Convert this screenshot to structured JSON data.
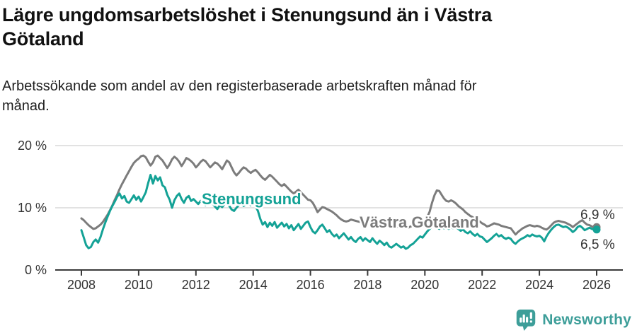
{
  "header": {
    "title": "Lägre ungdomsarbetslöshet i Stenungsund än i Västra\nGötaland",
    "subtitle": "Arbetssökande som andel av den registerbaserade arbetskraften månad för\nmånad."
  },
  "chart_data": {
    "type": "line",
    "title": "Lägre ungdomsarbetslöshet i Stenungsund än i Västra Götaland",
    "subtitle": "Arbetssökande som andel av den registerbaserade arbetskraften månad för månad.",
    "unit": "%",
    "x_start_year": 2008,
    "points_per_year": 12,
    "x_ticks": [
      "2008",
      "2010",
      "2012",
      "2014",
      "2016",
      "2018",
      "2020",
      "2022",
      "2024",
      "2026"
    ],
    "y_ticks": [
      {
        "value": 0,
        "label": "0 %"
      },
      {
        "value": 10,
        "label": "10 %"
      },
      {
        "value": 20,
        "label": "20 %"
      }
    ],
    "ylim": [
      0,
      21
    ],
    "grid": "horizontal-only",
    "legend_position": "inline-labels",
    "axis_color": "#3a3a3a",
    "gridline_color": "#d9d9d9",
    "tick_label_color": "#333333",
    "end_label_color": "#333333",
    "series": [
      {
        "name": "Stenungsund",
        "color": "#14a296",
        "end_label": "6,5 %",
        "end_value": 6.5,
        "values": [
          6.4,
          5.2,
          4.0,
          3.5,
          3.7,
          4.5,
          4.9,
          4.4,
          5.3,
          6.5,
          7.6,
          8.6,
          9.5,
          10.3,
          11.0,
          11.8,
          12.3,
          11.5,
          11.9,
          11.0,
          10.8,
          11.4,
          12.0,
          11.3,
          11.8,
          11.0,
          11.7,
          12.5,
          14.0,
          15.3,
          13.9,
          15.1,
          14.4,
          14.9,
          13.6,
          13.3,
          12.1,
          11.3,
          10.0,
          11.2,
          11.9,
          12.3,
          11.4,
          10.8,
          11.6,
          11.9,
          11.1,
          11.4,
          11.0,
          10.6,
          11.1,
          10.8,
          10.4,
          10.9,
          11.3,
          10.7,
          10.2,
          9.8,
          10.4,
          10.1,
          10.6,
          10.9,
          10.3,
          9.7,
          9.5,
          10.0,
          10.4,
          10.8,
          10.3,
          10.6,
          10.9,
          10.4,
          10.8,
          10.2,
          9.5,
          8.2,
          7.3,
          7.7,
          6.9,
          7.6,
          7.1,
          7.7,
          6.8,
          7.2,
          7.6,
          7.0,
          7.4,
          6.7,
          7.2,
          6.4,
          6.9,
          7.4,
          6.6,
          7.1,
          7.6,
          7.8,
          6.9,
          6.2,
          5.9,
          6.4,
          7.0,
          7.3,
          6.7,
          6.1,
          6.4,
          5.8,
          5.4,
          5.7,
          5.1,
          5.5,
          5.9,
          5.4,
          4.9,
          5.3,
          4.8,
          4.5,
          5.0,
          5.3,
          4.7,
          5.1,
          4.8,
          4.5,
          5.1,
          4.6,
          4.2,
          4.7,
          4.4,
          4.0,
          4.4,
          3.8,
          3.6,
          3.9,
          4.2,
          3.9,
          3.6,
          3.8,
          3.4,
          3.6,
          4.0,
          4.2,
          4.6,
          5.0,
          5.4,
          5.2,
          5.7,
          6.2,
          6.6,
          7.0,
          7.3,
          6.9,
          6.6,
          6.9,
          6.7,
          6.9,
          6.6,
          6.8,
          6.7,
          6.9,
          6.6,
          6.3,
          6.5,
          6.1,
          5.9,
          6.2,
          5.8,
          5.5,
          5.8,
          5.4,
          5.3,
          4.9,
          4.5,
          4.8,
          5.1,
          5.5,
          5.8,
          5.4,
          5.6,
          5.2,
          5.0,
          5.2,
          5.0,
          4.5,
          4.2,
          4.6,
          4.9,
          5.1,
          5.3,
          5.6,
          5.4,
          5.7,
          5.5,
          5.4,
          5.5,
          5.2,
          4.6,
          5.4,
          6.0,
          6.5,
          6.9,
          7.2,
          7.3,
          7.1,
          6.9,
          7.0,
          6.8,
          6.5,
          6.1,
          6.4,
          6.9,
          7.1,
          6.8,
          6.4,
          6.6,
          6.8,
          6.6,
          6.5,
          6.5
        ]
      },
      {
        "name": "Västra Götaland",
        "color": "#7c7c7c",
        "end_label": "6,9 %",
        "end_value": 6.9,
        "values": [
          8.3,
          8.0,
          7.6,
          7.2,
          6.9,
          6.6,
          6.7,
          7.0,
          7.3,
          7.7,
          8.3,
          8.9,
          9.6,
          10.4,
          11.3,
          12.1,
          13.0,
          13.8,
          14.5,
          15.2,
          15.9,
          16.6,
          17.2,
          17.6,
          17.9,
          18.3,
          18.4,
          18.1,
          17.4,
          16.8,
          17.3,
          18.2,
          18.4,
          18.0,
          17.6,
          17.0,
          16.4,
          17.0,
          17.8,
          18.2,
          17.9,
          17.4,
          16.7,
          17.3,
          18.0,
          17.8,
          17.5,
          17.1,
          16.5,
          16.9,
          17.4,
          17.7,
          17.5,
          17.0,
          16.5,
          16.9,
          17.3,
          17.1,
          16.7,
          16.2,
          16.9,
          17.6,
          17.3,
          16.5,
          15.7,
          15.2,
          15.6,
          16.1,
          16.5,
          16.3,
          15.9,
          15.6,
          15.9,
          16.1,
          15.7,
          15.2,
          14.8,
          14.5,
          14.9,
          15.3,
          15.0,
          14.6,
          14.2,
          13.8,
          13.5,
          13.8,
          13.4,
          13.0,
          12.6,
          12.3,
          12.6,
          12.9,
          12.5,
          12.1,
          11.7,
          11.3,
          11.2,
          10.8,
          10.1,
          9.3,
          9.7,
          10.1,
          10.0,
          9.8,
          9.6,
          9.4,
          9.1,
          8.8,
          8.4,
          8.1,
          7.9,
          7.8,
          7.9,
          8.1,
          8.0,
          7.9,
          7.8,
          7.7,
          7.6,
          7.5,
          7.5,
          7.6,
          7.5,
          7.4,
          7.3,
          7.2,
          7.3,
          7.4,
          7.3,
          7.2,
          7.1,
          7.0,
          6.9,
          7.0,
          7.2,
          7.1,
          6.9,
          6.8,
          7.0,
          7.1,
          7.3,
          7.4,
          7.5,
          7.7,
          7.9,
          8.5,
          9.4,
          10.8,
          12.0,
          12.8,
          12.7,
          12.1,
          11.5,
          11.1,
          11.0,
          11.2,
          11.0,
          10.7,
          10.3,
          10.0,
          9.7,
          9.3,
          9.0,
          8.7,
          8.5,
          8.2,
          8.0,
          7.8,
          7.5,
          7.3,
          7.0,
          7.1,
          7.3,
          7.5,
          7.4,
          7.3,
          7.1,
          7.0,
          6.9,
          6.8,
          6.7,
          6.2,
          5.7,
          6.1,
          6.4,
          6.7,
          6.9,
          7.1,
          7.2,
          7.1,
          7.0,
          7.1,
          7.0,
          6.8,
          6.6,
          6.5,
          6.8,
          7.2,
          7.6,
          7.8,
          7.9,
          7.8,
          7.7,
          7.6,
          7.4,
          7.2,
          6.9,
          7.2,
          7.5,
          7.8,
          8.0,
          7.6,
          7.3,
          7.2,
          7.0,
          6.8,
          6.9
        ]
      }
    ]
  },
  "footer": {
    "brand": "Newsworthy",
    "brand_color": "#3d9e99"
  }
}
